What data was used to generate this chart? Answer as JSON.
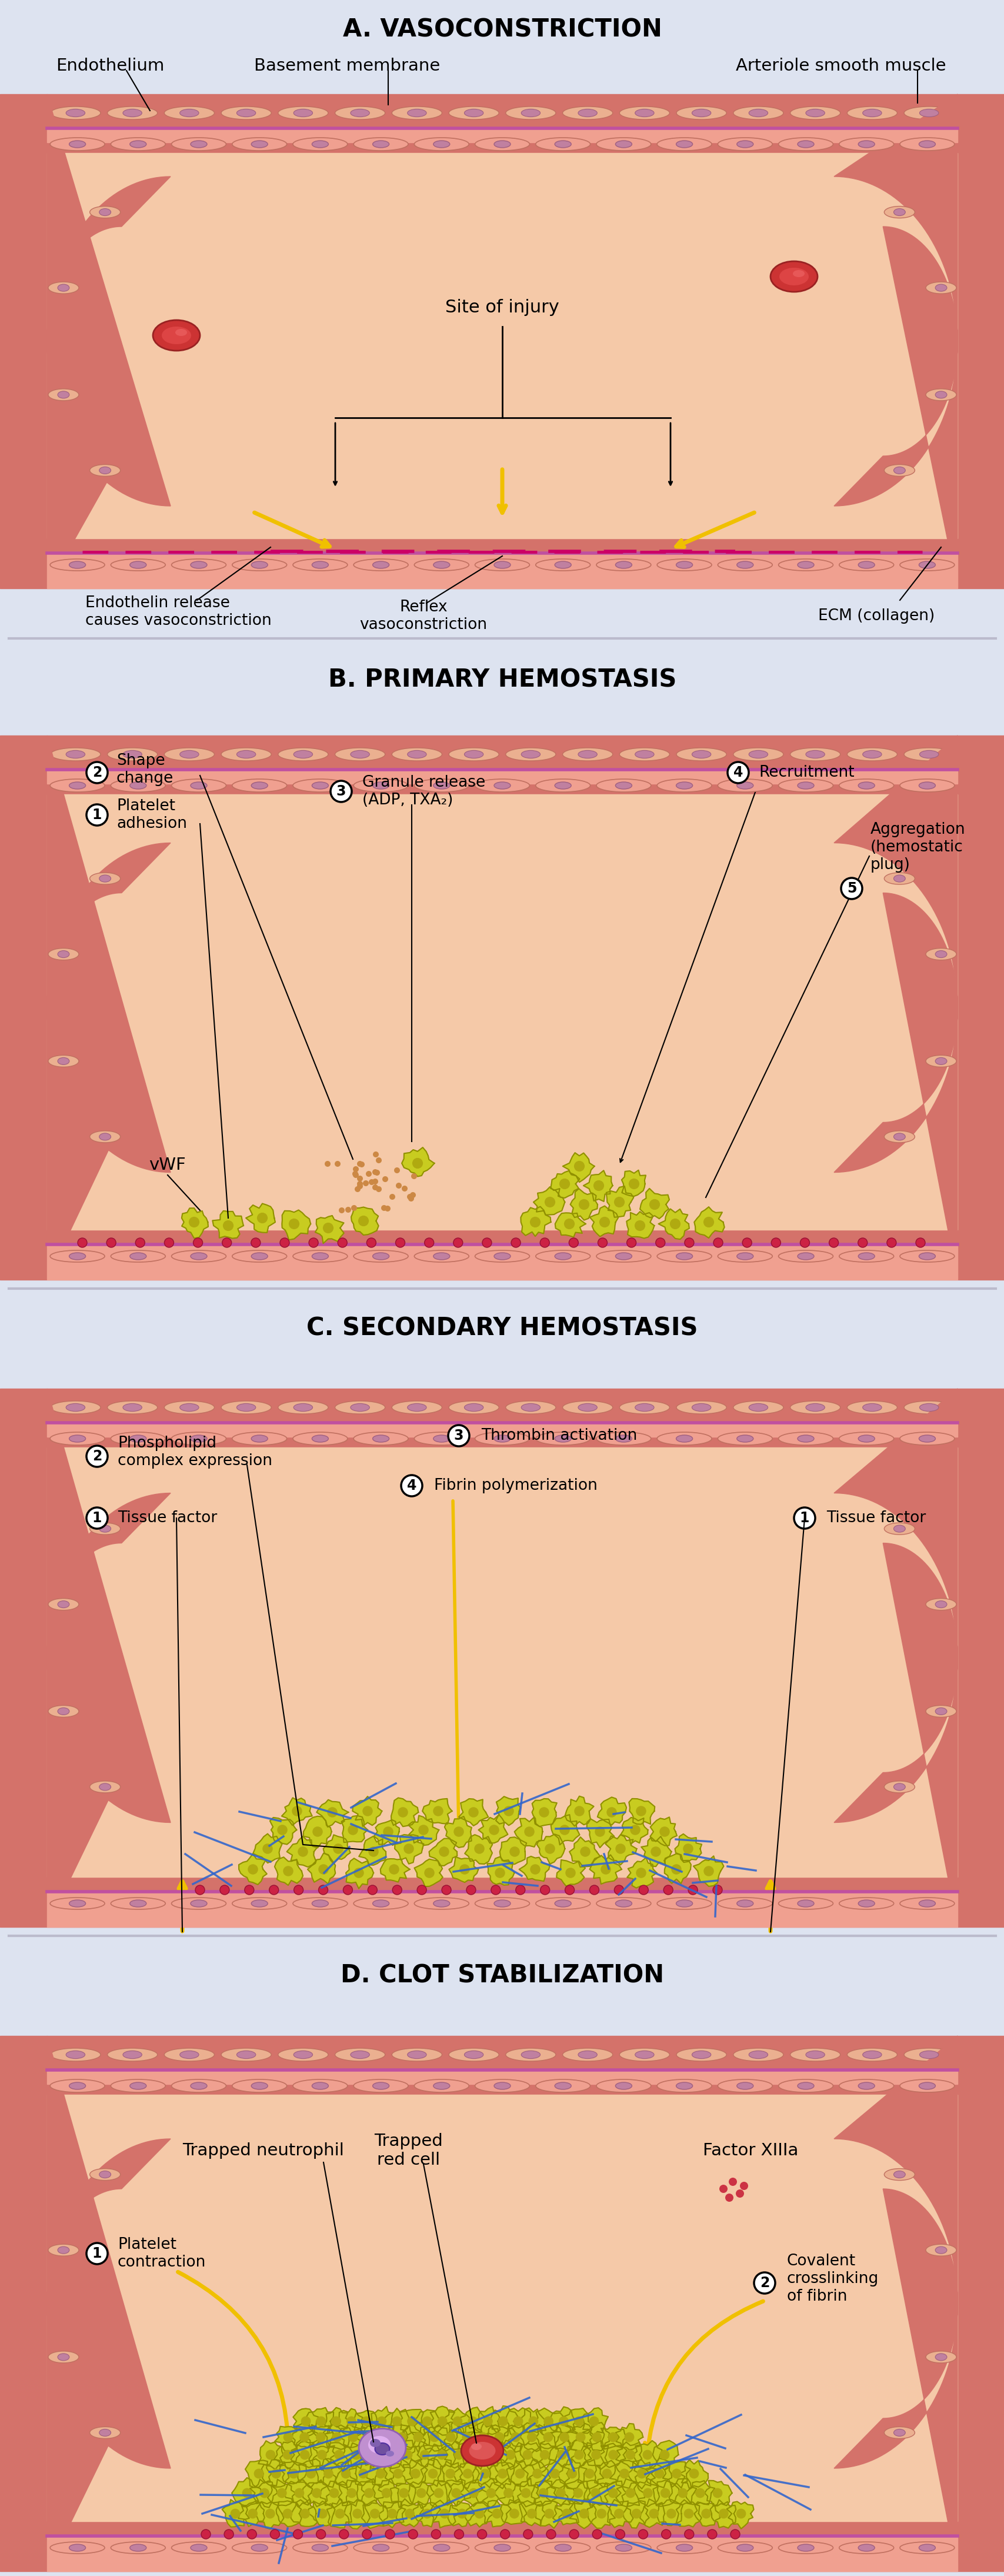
{
  "bg_color": "#dde3f0",
  "title_A": "A. VASOCONSTRICTION",
  "title_B": "B. PRIMARY HEMOSTASIS",
  "title_C": "C. SECONDARY HEMOSTASIS",
  "title_D": "D. CLOT STABILIZATION",
  "vessel_lumen": "#f5c9a8",
  "vessel_outer": "#d4726a",
  "vessel_inner_pink": "#f0a090",
  "basement_color": "#c050a0",
  "endo_cell_fill": "#f0a090",
  "endo_nucleus": "#c080a0",
  "sm_cell_fill": "#ebb090",
  "sm_nucleus": "#c080a0",
  "rbc_fill": "#cc3333",
  "platelet_fill": "#c8cc20",
  "platelet_edge": "#909000",
  "fibrin_color": "#3366cc",
  "red_dot": "#cc2244",
  "yellow_arrow": "#f0c000",
  "text_color": "#000000",
  "divider_color": "#bbbbcc"
}
